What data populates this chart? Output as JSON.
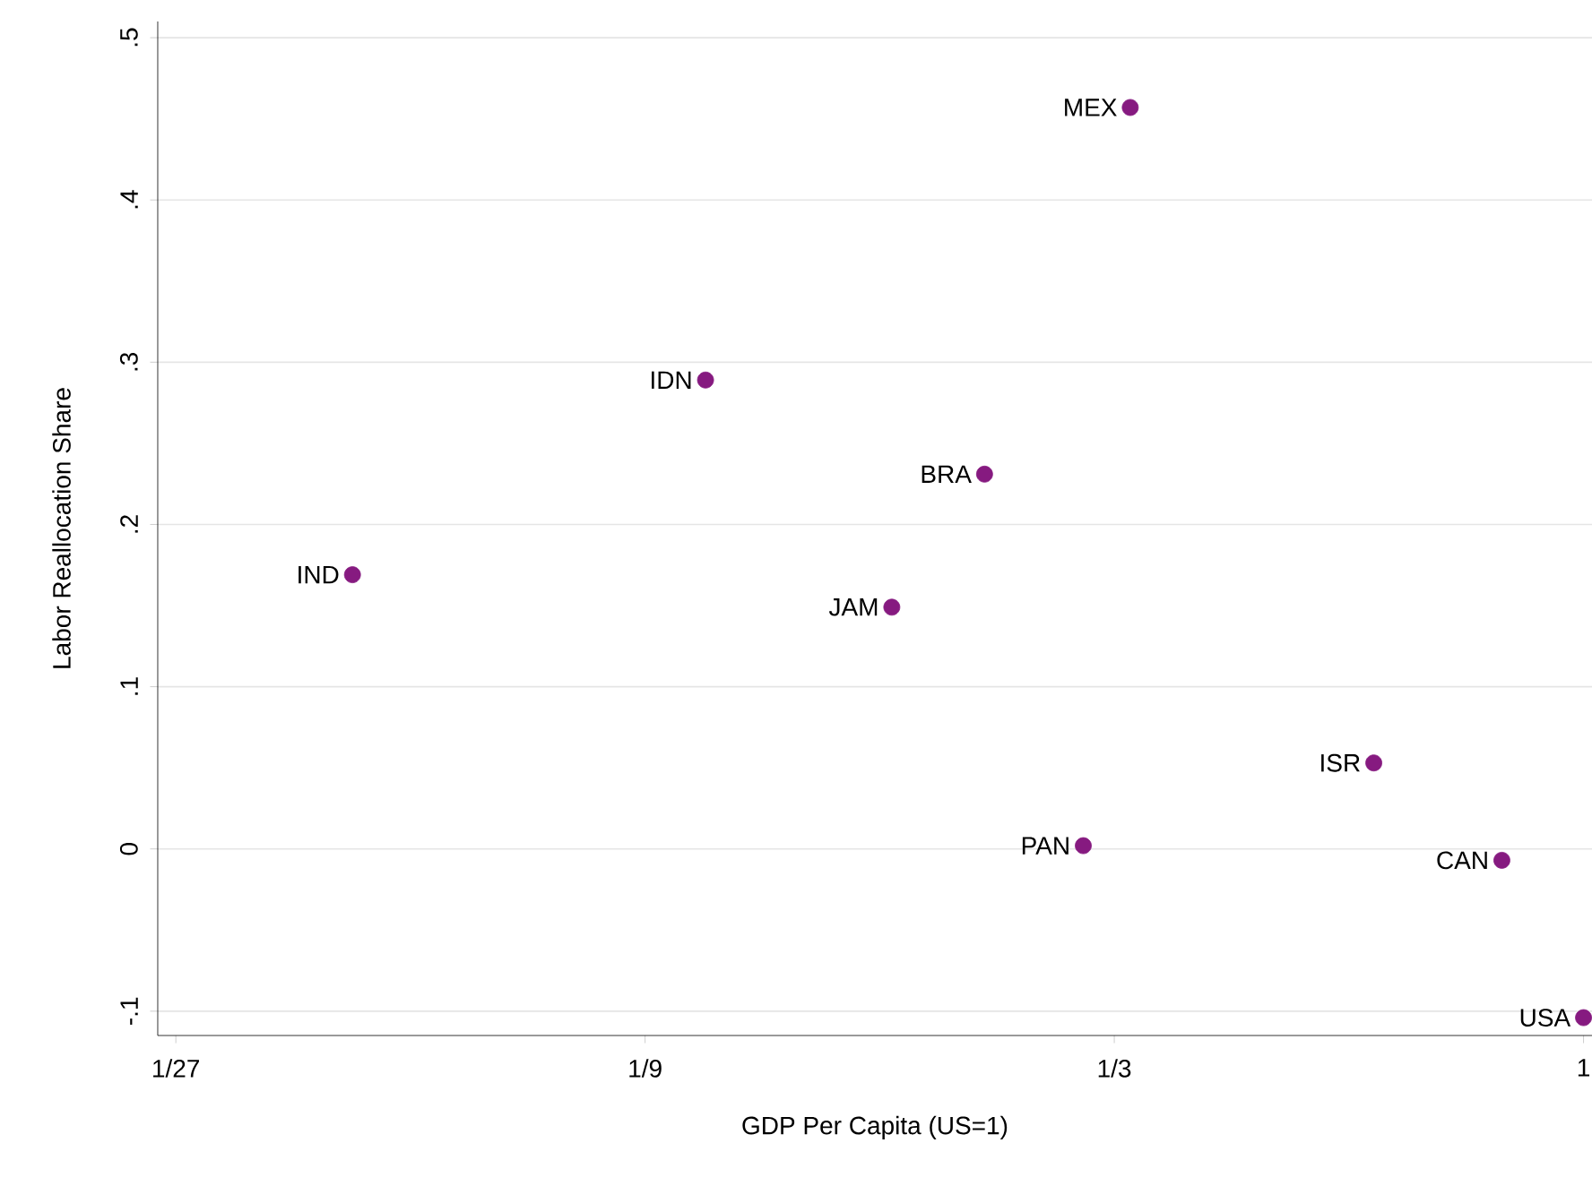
{
  "chart_data": {
    "type": "scatter",
    "xlabel": "GDP Per Capita (US=1)",
    "ylabel": "Labor Reallocation Share",
    "log": "x",
    "grid": "y",
    "legend": false,
    "marker": "circle",
    "xlim": [
      0.0355,
      1.02
    ],
    "ylim": [
      -0.115,
      0.51
    ],
    "xticks": [
      {
        "value": 0.037037,
        "label": "1/27"
      },
      {
        "value": 0.111111,
        "label": "1/9"
      },
      {
        "value": 0.333333,
        "label": "1/3"
      },
      1
    ],
    "yticks": [
      {
        "value": -0.1,
        "label": "-.1"
      },
      0,
      {
        "value": 0.1,
        "label": ".1"
      },
      {
        "value": 0.2,
        "label": ".2"
      },
      {
        "value": 0.3,
        "label": ".3"
      },
      {
        "value": 0.4,
        "label": ".4"
      },
      {
        "value": 0.5,
        "label": ".5"
      }
    ],
    "series": [
      {
        "name": "IND",
        "color": "#861a80",
        "x": [
          0.056
        ],
        "values": [
          0.169
        ]
      },
      {
        "name": "IDN",
        "color": "#861a80",
        "x": [
          0.128
        ],
        "values": [
          0.289
        ]
      },
      {
        "name": "JAM",
        "color": "#861a80",
        "x": [
          0.198
        ],
        "values": [
          0.149
        ]
      },
      {
        "name": "BRA",
        "color": "#861a80",
        "x": [
          0.246
        ],
        "values": [
          0.231
        ]
      },
      {
        "name": "PAN",
        "color": "#861a80",
        "x": [
          0.31
        ],
        "values": [
          0.002
        ]
      },
      {
        "name": "MEX",
        "color": "#861a80",
        "x": [
          0.346
        ],
        "values": [
          0.457
        ]
      },
      {
        "name": "ISR",
        "color": "#861a80",
        "x": [
          0.612
        ],
        "values": [
          0.053
        ]
      },
      {
        "name": "CAN",
        "color": "#861a80",
        "x": [
          0.826
        ],
        "values": [
          -0.007
        ]
      },
      {
        "name": "USA",
        "color": "#861a80",
        "x": [
          1.0
        ],
        "values": [
          -0.104
        ]
      }
    ]
  }
}
